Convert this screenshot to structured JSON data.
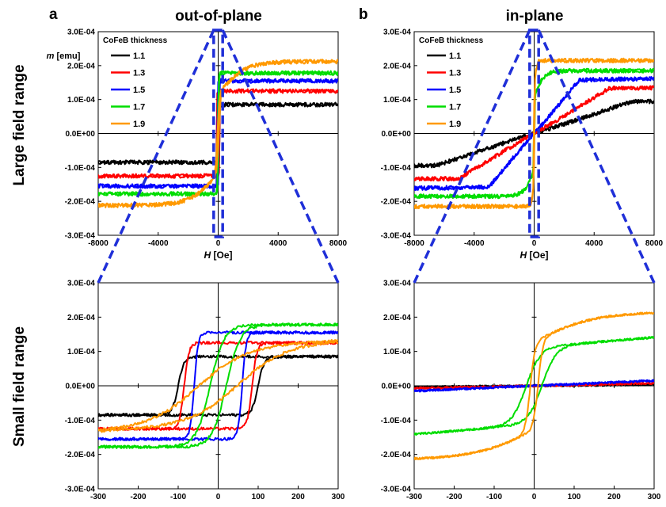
{
  "figure": {
    "row_labels": [
      "Large field range",
      "Small field range"
    ],
    "panel_labels": [
      "a",
      "b"
    ],
    "column_titles": [
      "out-of-plane",
      "in-plane"
    ]
  },
  "chart_data": [
    {
      "id": "a-large",
      "type": "line",
      "title": "out-of-plane",
      "panel_label": "a",
      "xlabel_italic": "H",
      "xlabel_rest": " [Oe]",
      "ylabel_italic": "m",
      "ylabel_rest": " [emu]",
      "xlim": [
        -8000,
        8000
      ],
      "ylim": [
        -0.0003,
        0.0003
      ],
      "xticks": [
        -8000,
        -4000,
        0,
        4000,
        8000
      ],
      "xtick_labels": [
        "-8000",
        "-4000",
        "0",
        "4000",
        "8000"
      ],
      "yticks": [
        -0.0003,
        -0.0002,
        -0.0001,
        0,
        0.0001,
        0.0002,
        0.0003
      ],
      "ytick_labels": [
        "-3.0E-04",
        "-2.0E-04",
        "-1.0E-04",
        "0.0E+00",
        "1.0E-04",
        "2.0E-04",
        "3.0E-04"
      ],
      "legend_title": "CoFeB thickness",
      "legend_position": "top-left",
      "zoom_box_x": [
        -300,
        300
      ],
      "series": [
        {
          "name": "1.1",
          "color": "#000000",
          "kind": "pma",
          "ms": 8.5e-05,
          "hc": 100,
          "w": 15,
          "noise": 6e-06
        },
        {
          "name": "1.3",
          "color": "#ff0000",
          "kind": "pma",
          "ms": 0.000125,
          "hc": 85,
          "w": 12,
          "noise": 6e-06
        },
        {
          "name": "1.5",
          "color": "#0000ff",
          "kind": "pma",
          "ms": 0.000155,
          "hc": 60,
          "w": 10,
          "noise": 6e-06
        },
        {
          "name": "1.7",
          "color": "#00dd00",
          "kind": "pma",
          "ms": 0.000178,
          "hc": 20,
          "w": 35,
          "noise": 6e-06
        },
        {
          "name": "1.9",
          "color": "#ff9900",
          "kind": "wp",
          "ms": 0.000212,
          "hc": 50,
          "w": 120,
          "sat": 1800,
          "noise": 6e-06
        }
      ]
    },
    {
      "id": "b-large",
      "type": "line",
      "title": "in-plane",
      "panel_label": "b",
      "xlabel_italic": "H",
      "xlabel_rest": " [Oe]",
      "xlim": [
        -8000,
        8000
      ],
      "ylim": [
        -0.0003,
        0.0003
      ],
      "xticks": [
        -8000,
        -4000,
        0,
        4000,
        8000
      ],
      "xtick_labels": [
        "-8000",
        "-4000",
        "0",
        "4000",
        "8000"
      ],
      "yticks": [
        -0.0003,
        -0.0002,
        -0.0001,
        0,
        0.0001,
        0.0002,
        0.0003
      ],
      "ytick_labels": [
        "-3.0E-04",
        "-2.0E-04",
        "-1.0E-04",
        "0.0E+00",
        "1.0E-04",
        "2.0E-04",
        "3.0E-04"
      ],
      "legend_title": "CoFeB thickness",
      "legend_position": "top-left",
      "zoom_box_x": [
        -300,
        300
      ],
      "series": [
        {
          "name": "1.1",
          "color": "#000000",
          "kind": "hard",
          "ms": 9.5e-05,
          "hk": 6500,
          "noise": 6e-06
        },
        {
          "name": "1.3",
          "color": "#ff0000",
          "kind": "hard",
          "ms": 0.000135,
          "hk": 5000,
          "noise": 6e-06
        },
        {
          "name": "1.5",
          "color": "#0000ff",
          "kind": "hard",
          "ms": 0.000162,
          "hk": 3000,
          "noise": 6e-06
        },
        {
          "name": "1.7",
          "color": "#00dd00",
          "kind": "ip",
          "ms": 0.000185,
          "hc": 20,
          "w": 35,
          "sat": 700,
          "noise": 6e-06
        },
        {
          "name": "1.9",
          "color": "#ff9900",
          "kind": "ip",
          "ms": 0.000215,
          "hc": 10,
          "w": 12,
          "sat": 150,
          "noise": 6e-06
        }
      ]
    },
    {
      "id": "a-small",
      "type": "line",
      "xlim": [
        -300,
        300
      ],
      "ylim": [
        -0.0003,
        0.0003
      ],
      "xticks": [
        -300,
        -200,
        -100,
        0,
        100,
        200,
        300
      ],
      "xtick_labels": [
        "-300",
        "-200",
        "-100",
        "0",
        "100",
        "200",
        "300"
      ],
      "yticks": [
        -0.0003,
        -0.0002,
        -0.0001,
        0,
        0.0001,
        0.0002,
        0.0003
      ],
      "ytick_labels": [
        "-3.0E-04",
        "-2.0E-04",
        "-1.0E-04",
        "0.0E+00",
        "1.0E-04",
        "2.0E-04",
        "3.0E-04"
      ],
      "series": [
        {
          "name": "1.1",
          "color": "#000000",
          "kind": "pma",
          "ms": 8.5e-05,
          "hc": 100,
          "w": 15,
          "noise": 4e-06
        },
        {
          "name": "1.3",
          "color": "#ff0000",
          "kind": "pma",
          "ms": 0.000125,
          "hc": 85,
          "w": 12,
          "noise": 4e-06
        },
        {
          "name": "1.5",
          "color": "#0000ff",
          "kind": "pma",
          "ms": 0.000155,
          "hc": 60,
          "w": 10,
          "noise": 4e-06
        },
        {
          "name": "1.7",
          "color": "#00dd00",
          "kind": "pma",
          "ms": 0.000178,
          "hc": 20,
          "w": 35,
          "noise": 4e-06
        },
        {
          "name": "1.9",
          "color": "#ff9900",
          "kind": "wp",
          "ms": 0.000212,
          "hc": 50,
          "w": 120,
          "sat": 1800,
          "noise": 4e-06
        }
      ]
    },
    {
      "id": "b-small",
      "type": "line",
      "xlim": [
        -300,
        300
      ],
      "ylim": [
        -0.0003,
        0.0003
      ],
      "xticks": [
        -300,
        -200,
        -100,
        0,
        100,
        200,
        300
      ],
      "xtick_labels": [
        "-300",
        "-200",
        "-100",
        "0",
        "100",
        "200",
        "300"
      ],
      "yticks": [
        -0.0003,
        -0.0002,
        -0.0001,
        0,
        0.0001,
        0.0002,
        0.0003
      ],
      "ytick_labels": [
        "-3.0E-04",
        "-2.0E-04",
        "-1.0E-04",
        "0.0E+00",
        "1.0E-04",
        "2.0E-04",
        "3.0E-04"
      ],
      "series": [
        {
          "name": "1.1",
          "color": "#000000",
          "kind": "hard",
          "ms": 9.5e-05,
          "hk": 6500,
          "noise": 3e-06
        },
        {
          "name": "1.3",
          "color": "#ff0000",
          "kind": "hard",
          "ms": 0.000135,
          "hk": 5000,
          "noise": 3e-06
        },
        {
          "name": "1.5",
          "color": "#0000ff",
          "kind": "hard",
          "ms": 0.000162,
          "hk": 3000,
          "noise": 3e-06
        },
        {
          "name": "1.7",
          "color": "#00dd00",
          "kind": "ip",
          "ms": 0.000185,
          "hc": 20,
          "w": 35,
          "sat": 700,
          "noise": 3e-06
        },
        {
          "name": "1.9",
          "color": "#ff9900",
          "kind": "ip",
          "ms": 0.000215,
          "hc": 10,
          "w": 12,
          "sat": 150,
          "noise": 3e-06
        }
      ]
    }
  ]
}
